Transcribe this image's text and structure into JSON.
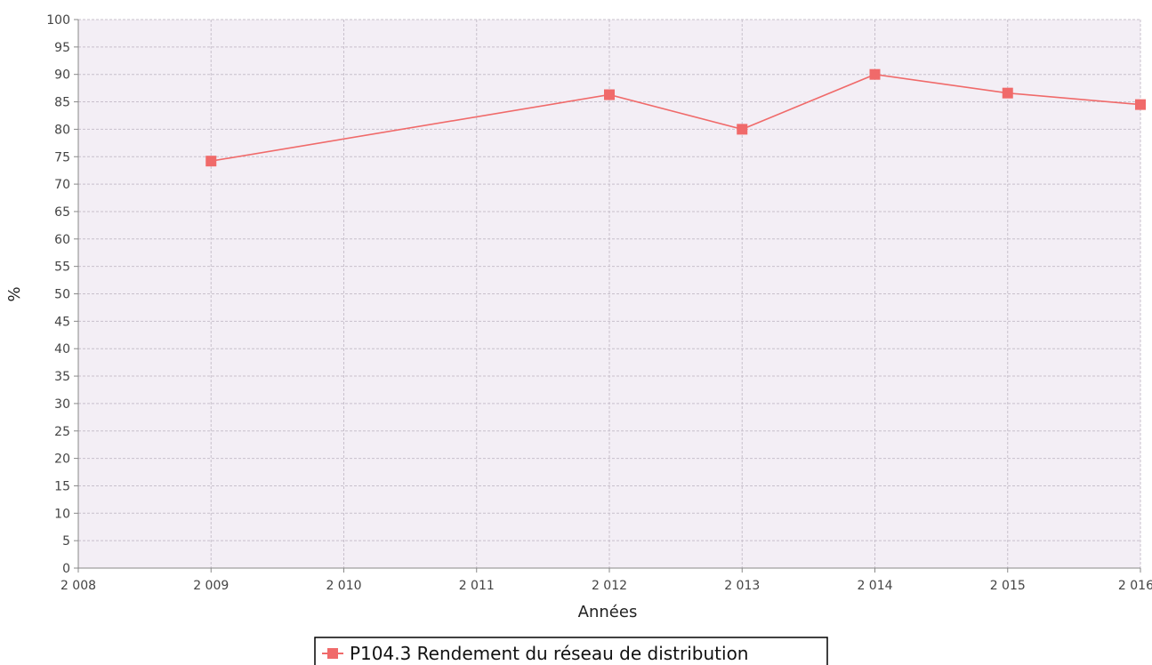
{
  "chart_data": {
    "type": "line",
    "xlabel": "Années",
    "ylabel": "%",
    "xlim": [
      2008,
      2016
    ],
    "ylim": [
      0,
      100
    ],
    "x_ticks": [
      "2 008",
      "2 009",
      "2 010",
      "2 011",
      "2 012",
      "2 013",
      "2 014",
      "2 015",
      "2 016"
    ],
    "y_ticks": [
      "0",
      "5",
      "10",
      "15",
      "20",
      "25",
      "30",
      "35",
      "40",
      "45",
      "50",
      "55",
      "60",
      "65",
      "70",
      "75",
      "80",
      "85",
      "90",
      "95",
      "100"
    ],
    "grid": true,
    "legend_position": "bottom-center",
    "series": [
      {
        "name": "P104.3 Rendement du réseau de distribution",
        "color": "#f06a6a",
        "x": [
          2009,
          2012,
          2013,
          2014,
          2015,
          2016
        ],
        "y": [
          74.2,
          86.3,
          80.0,
          90.0,
          86.6,
          84.5
        ]
      }
    ]
  },
  "colors": {
    "plot_background": "#f3eef5",
    "grid": "#c8c0cc",
    "axis": "#888888"
  }
}
